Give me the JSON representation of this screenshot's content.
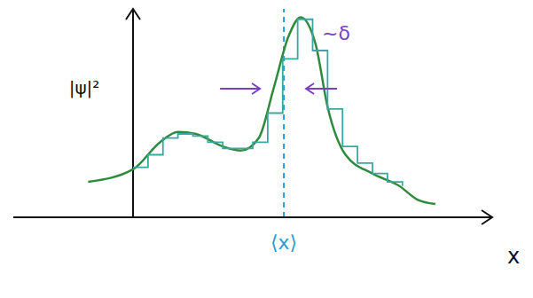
{
  "chart_data": {
    "type": "line",
    "y_label": "|ψ|²",
    "x_label": "x",
    "xlim": [
      -4,
      12
    ],
    "ylim": [
      0,
      10
    ],
    "xticks": [
      0,
      0.5,
      1,
      1.5,
      2,
      2.5,
      3,
      3.5,
      4,
      4.5,
      5,
      5.5,
      6,
      6.5,
      7,
      7.5,
      8,
      8.5,
      9
    ],
    "tick_labels": false,
    "grid": false,
    "series": [
      {
        "type": "line",
        "color": "#2e8b3e",
        "x": [
          -1.5,
          0,
          0.9,
          1.5,
          2.1,
          3.0,
          3.6,
          4.2,
          4.7,
          5.2,
          5.6,
          6.1,
          6.5,
          7.1,
          8.0,
          8.9,
          9.5,
          10.1
        ],
        "values": [
          1.7,
          2.3,
          3.6,
          4.1,
          4.0,
          3.4,
          3.2,
          3.8,
          6.2,
          8.7,
          9.6,
          8.3,
          5.3,
          3.0,
          2.1,
          1.5,
          0.85,
          0.64
        ]
      },
      {
        "type": "step",
        "color": "#3aa7a0",
        "x": [
          0,
          0.5,
          1,
          1.5,
          2,
          2.5,
          3,
          3.5,
          4,
          4.5,
          5,
          5.5,
          6,
          6.5,
          7,
          7.5,
          8,
          8.5,
          9
        ],
        "values": [
          2.4,
          3.0,
          3.8,
          4.0,
          3.9,
          3.6,
          3.3,
          3.3,
          3.6,
          5.0,
          7.6,
          9.5,
          8.0,
          5.2,
          3.4,
          2.6,
          2.1,
          1.7,
          1.5
        ]
      }
    ],
    "reference_line": {
      "x": 5.04,
      "label": "⟨x⟩",
      "color": "#2a9bd4",
      "line_style": "dashed"
    },
    "width_annotation": {
      "text": "~δ",
      "x": [
        4.24,
        5.78
      ],
      "y": 6.17,
      "color": "#7b3fc4"
    }
  }
}
